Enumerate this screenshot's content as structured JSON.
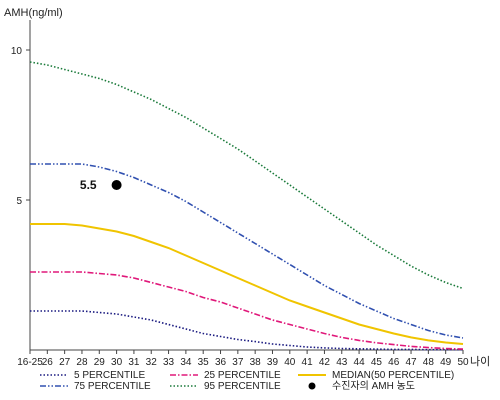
{
  "chart_data": {
    "type": "line",
    "ylabel": "AMH(ng/ml)",
    "xlabel": "나이",
    "ylim": [
      0,
      11
    ],
    "y_ticks": [
      5,
      10
    ],
    "x_tick_labels": [
      "16-25",
      "26",
      "27",
      "28",
      "29",
      "30",
      "31",
      "32",
      "33",
      "34",
      "35",
      "36",
      "37",
      "38",
      "39",
      "40",
      "41",
      "42",
      "43",
      "44",
      "45",
      "46",
      "47",
      "48",
      "49",
      "50"
    ],
    "x_ages": [
      25,
      26,
      27,
      28,
      29,
      30,
      31,
      32,
      33,
      34,
      35,
      36,
      37,
      38,
      39,
      40,
      41,
      42,
      43,
      44,
      45,
      46,
      47,
      48,
      49,
      50
    ],
    "series": [
      {
        "name": "5 PERCENTILE",
        "color": "#1a1a80",
        "dash": "dotted",
        "values": [
          1.3,
          1.3,
          1.3,
          1.3,
          1.25,
          1.2,
          1.1,
          1.0,
          0.85,
          0.7,
          0.55,
          0.45,
          0.35,
          0.28,
          0.2,
          0.15,
          0.1,
          0.07,
          0.05,
          0.04,
          0.03,
          0.02,
          0.02,
          0.01,
          0.01,
          0.01
        ]
      },
      {
        "name": "25 PERCENTILE",
        "color": "#e0187a",
        "dash": "dashdot",
        "values": [
          2.6,
          2.6,
          2.6,
          2.6,
          2.55,
          2.5,
          2.4,
          2.25,
          2.1,
          1.95,
          1.75,
          1.6,
          1.4,
          1.2,
          1.0,
          0.85,
          0.7,
          0.55,
          0.42,
          0.32,
          0.24,
          0.18,
          0.12,
          0.08,
          0.05,
          0.03
        ]
      },
      {
        "name": "MEDIAN(50 PERCENTILE)",
        "color": "#f0c400",
        "dash": "solid",
        "values": [
          4.2,
          4.2,
          4.2,
          4.15,
          4.05,
          3.95,
          3.8,
          3.6,
          3.4,
          3.15,
          2.9,
          2.65,
          2.4,
          2.15,
          1.9,
          1.65,
          1.45,
          1.25,
          1.05,
          0.85,
          0.7,
          0.55,
          0.42,
          0.32,
          0.25,
          0.2
        ]
      },
      {
        "name": "75 PERCENTILE",
        "color": "#3050b0",
        "dash": "dashdotdot",
        "values": [
          6.2,
          6.2,
          6.2,
          6.2,
          6.1,
          5.95,
          5.75,
          5.5,
          5.25,
          4.95,
          4.6,
          4.25,
          3.9,
          3.55,
          3.2,
          2.85,
          2.5,
          2.15,
          1.85,
          1.55,
          1.3,
          1.05,
          0.85,
          0.65,
          0.5,
          0.4
        ]
      },
      {
        "name": "95 PERCENTILE",
        "color": "#1a7a3a",
        "dash": "dotted",
        "values": [
          9.6,
          9.5,
          9.35,
          9.2,
          9.05,
          8.85,
          8.6,
          8.35,
          8.05,
          7.75,
          7.4,
          7.05,
          6.7,
          6.3,
          5.9,
          5.5,
          5.1,
          4.7,
          4.3,
          3.9,
          3.5,
          3.15,
          2.8,
          2.5,
          2.25,
          2.05
        ]
      }
    ],
    "patient_point": {
      "name": "수진자의 AMH 농도",
      "x": 30,
      "y": 5.5,
      "label": "5.5",
      "color": "#000000"
    },
    "legend": {
      "placement": "bottom",
      "order": [
        "5 PERCENTILE",
        "25 PERCENTILE",
        "MEDIAN(50 PERCENTILE)",
        "75 PERCENTILE",
        "95 PERCENTILE",
        "수진자의 AMH 농도"
      ]
    }
  }
}
